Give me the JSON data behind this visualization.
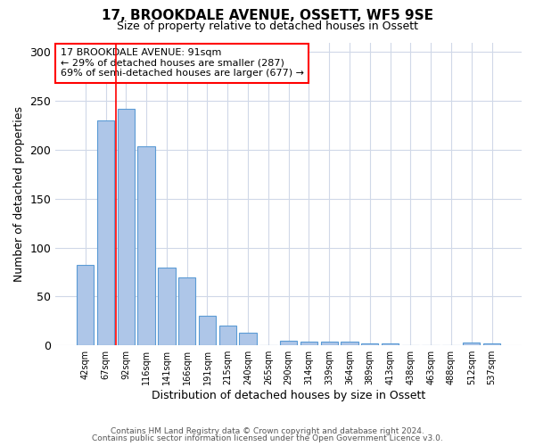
{
  "title": "17, BROOKDALE AVENUE, OSSETT, WF5 9SE",
  "subtitle": "Size of property relative to detached houses in Ossett",
  "xlabel": "Distribution of detached houses by size in Ossett",
  "ylabel": "Number of detached properties",
  "categories": [
    "42sqm",
    "67sqm",
    "92sqm",
    "116sqm",
    "141sqm",
    "166sqm",
    "191sqm",
    "215sqm",
    "240sqm",
    "265sqm",
    "290sqm",
    "314sqm",
    "339sqm",
    "364sqm",
    "389sqm",
    "413sqm",
    "438sqm",
    "463sqm",
    "488sqm",
    "512sqm",
    "537sqm"
  ],
  "values": [
    82,
    230,
    242,
    204,
    80,
    70,
    30,
    20,
    13,
    0,
    5,
    4,
    4,
    4,
    2,
    2,
    0,
    0,
    0,
    3,
    2
  ],
  "bar_color": "#aec6e8",
  "bar_edge_color": "#5b9bd5",
  "property_size_label": "17 BROOKDALE AVENUE: 91sqm",
  "annotation_line1": "← 29% of detached houses are smaller (287)",
  "annotation_line2": "69% of semi-detached houses are larger (677) →",
  "red_line_x": 1.5,
  "ylim": [
    0,
    310
  ],
  "yticks": [
    0,
    50,
    100,
    150,
    200,
    250,
    300
  ],
  "footnote1": "Contains HM Land Registry data © Crown copyright and database right 2024.",
  "footnote2": "Contains public sector information licensed under the Open Government Licence v3.0.",
  "background_color": "#ffffff",
  "grid_color": "#d0d8e8"
}
